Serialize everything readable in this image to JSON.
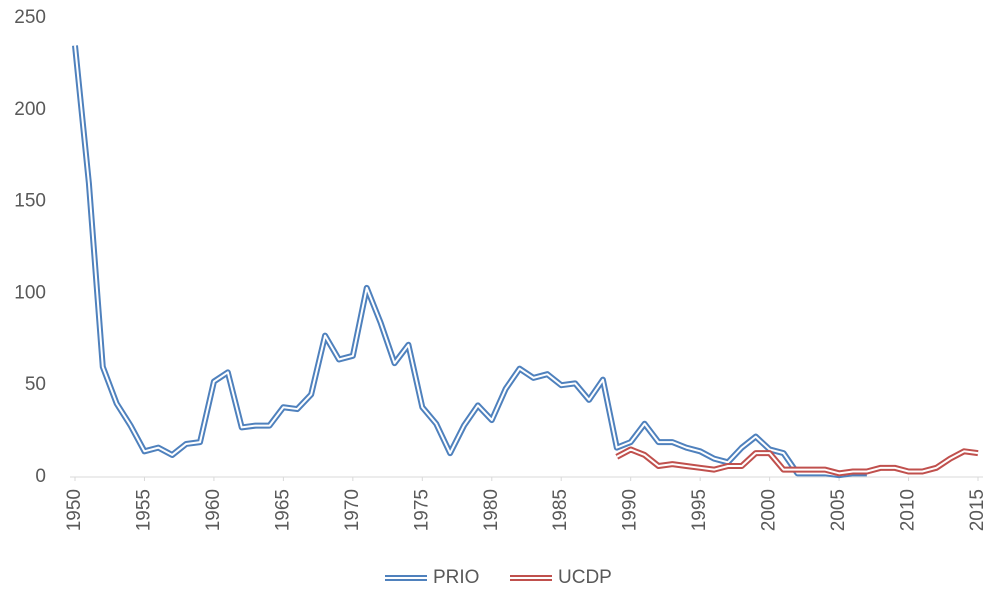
{
  "chart_data": {
    "type": "line",
    "x": [
      1950,
      1951,
      1952,
      1953,
      1954,
      1955,
      1956,
      1957,
      1958,
      1959,
      1960,
      1961,
      1962,
      1963,
      1964,
      1965,
      1966,
      1967,
      1968,
      1969,
      1970,
      1971,
      1972,
      1973,
      1974,
      1975,
      1976,
      1977,
      1978,
      1979,
      1980,
      1981,
      1982,
      1983,
      1984,
      1985,
      1986,
      1987,
      1988,
      1989,
      1990,
      1991,
      1992,
      1993,
      1994,
      1995,
      1996,
      1997,
      1998,
      1999,
      2000,
      2001,
      2002,
      2003,
      2004,
      2005,
      2006,
      2007,
      2008,
      2009,
      2010,
      2011,
      2012,
      2013,
      2014,
      2015
    ],
    "series": [
      {
        "name": "PRIO",
        "color": "#4f81bd",
        "values": [
          235,
          160,
          60,
          40,
          28,
          14,
          16,
          12,
          18,
          19,
          52,
          57,
          27,
          28,
          28,
          38,
          37,
          45,
          77,
          64,
          66,
          103,
          84,
          62,
          72,
          38,
          29,
          13,
          28,
          39,
          31,
          48,
          59,
          54,
          56,
          50,
          51,
          42,
          53,
          16,
          19,
          29,
          19,
          19,
          16,
          14,
          10,
          8,
          16,
          22,
          15,
          13,
          2,
          2,
          2,
          1,
          2,
          2,
          null,
          null,
          null,
          null,
          null,
          null,
          null,
          null
        ]
      },
      {
        "name": "UCDP",
        "color": "#c0504d",
        "values": [
          null,
          null,
          null,
          null,
          null,
          null,
          null,
          null,
          null,
          null,
          null,
          null,
          null,
          null,
          null,
          null,
          null,
          null,
          null,
          null,
          null,
          null,
          null,
          null,
          null,
          null,
          null,
          null,
          null,
          null,
          null,
          null,
          null,
          null,
          null,
          null,
          null,
          null,
          null,
          11,
          15,
          12,
          6,
          7,
          6,
          5,
          4,
          6,
          6,
          13,
          13,
          4,
          4,
          4,
          4,
          2,
          3,
          3,
          5,
          5,
          3,
          3,
          5,
          10,
          14,
          13
        ]
      }
    ],
    "xlim": [
      1950,
      2015
    ],
    "xticks": [
      1950,
      1955,
      1960,
      1965,
      1970,
      1975,
      1980,
      1985,
      1990,
      1995,
      2000,
      2005,
      2010,
      2015
    ],
    "ylim": [
      0,
      250
    ],
    "yticks": [
      0,
      50,
      100,
      150,
      200,
      250
    ],
    "legend": "bottom"
  }
}
